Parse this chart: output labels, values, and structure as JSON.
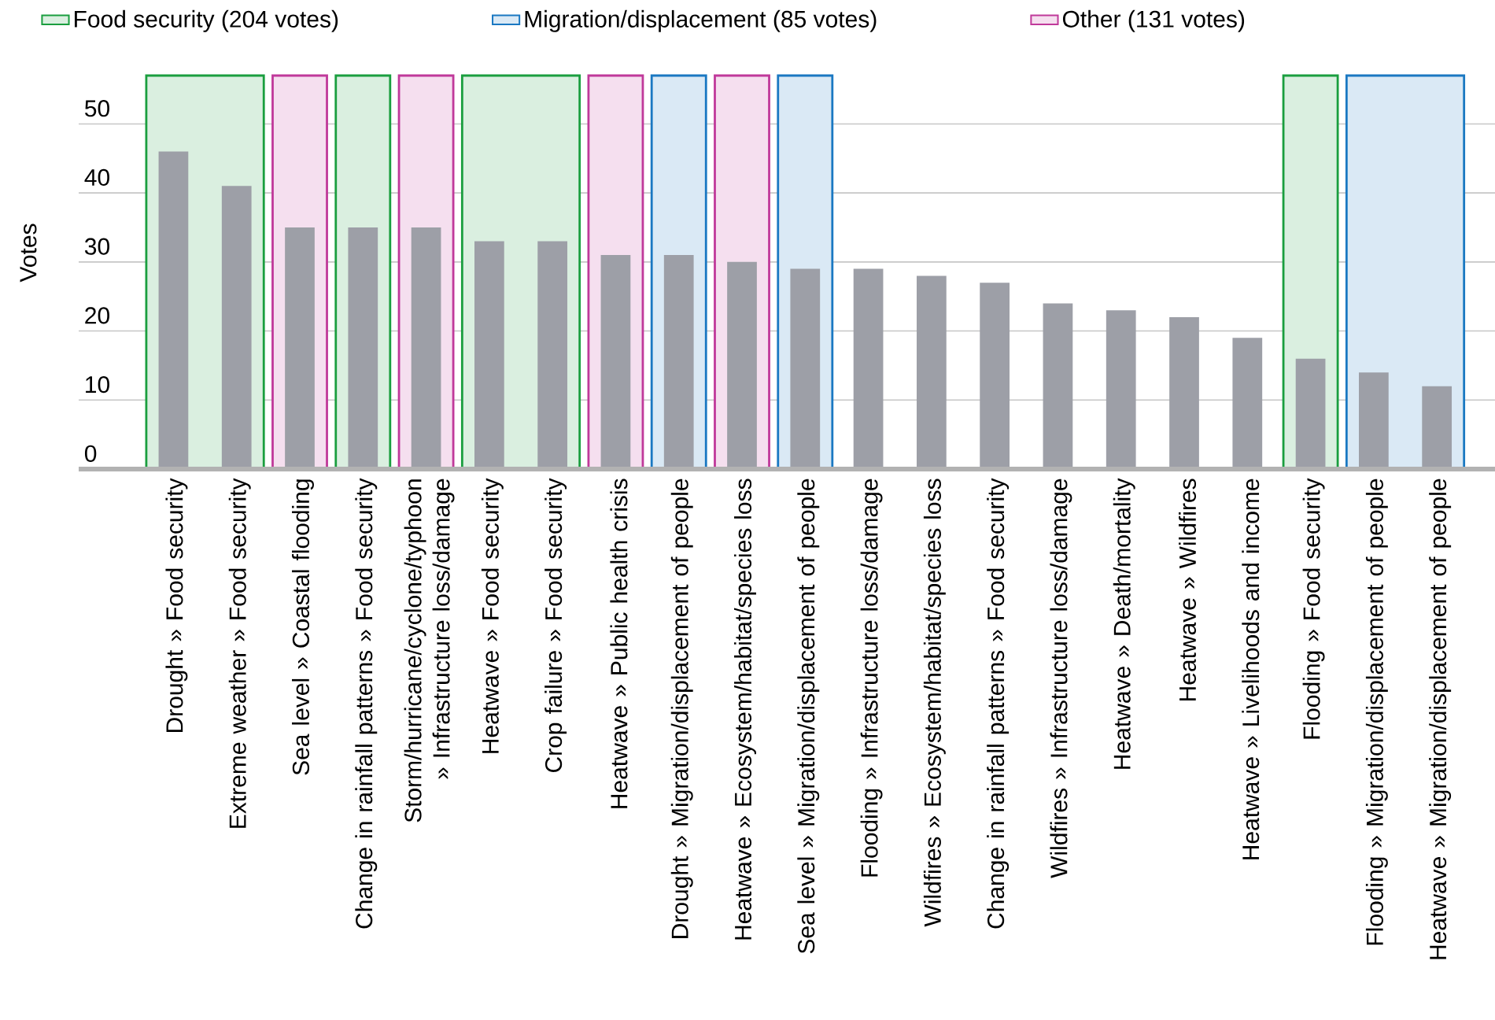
{
  "chart_data": {
    "type": "bar",
    "ylabel": "Votes",
    "categories": [
      "Drought » Food security",
      "Extreme weather » Food security",
      "Sea level » Coastal flooding",
      "Change in rainfall patterns » Food security",
      "Storm/hurricane/cyclone/typhoon » Infrastructure loss/damage",
      "Heatwave » Food security",
      "Crop failure » Food security",
      "Heatwave » Public health crisis",
      "Drought » Migration/displacement of people",
      "Heatwave » Ecosystem/habitat/species loss",
      "Sea level » Migration/displacement of people",
      "Flooding » Infrastructure loss/damage",
      "Wildfires » Ecosystem/habitat/species loss",
      "Change in rainfall patterns » Food security",
      "Wildfires » Infrastructure loss/damage",
      "Heatwave » Death/mortality",
      "Heatwave » Wildfires",
      "Heatwave » Livelihoods and income",
      "Flooding » Food security",
      "Flooding » Migration/displacement of people",
      "Heatwave » Migration/displacement of people"
    ],
    "values": [
      46,
      41,
      35,
      35,
      35,
      33,
      33,
      31,
      31,
      30,
      29,
      29,
      28,
      27,
      24,
      23,
      22,
      19,
      16,
      14,
      12
    ],
    "color": "#9d9fa7",
    "ylim": [
      0,
      57
    ],
    "yticks": [
      0,
      10,
      20,
      30,
      40,
      50
    ],
    "grid": "y",
    "legend": "top",
    "bands": [
      {
        "axis": "x",
        "from": "Drought » Food security",
        "to": "Extreme weather » Food security",
        "label": "Food security (204 votes)",
        "color": "#1a9e3f"
      },
      {
        "axis": "x",
        "from": "Sea level » Coastal flooding",
        "to": "Sea level » Coastal flooding",
        "color": "#c0399a"
      },
      {
        "axis": "x",
        "from": "Change in rainfall patterns » Food security",
        "to": "Change in rainfall patterns » Food security",
        "color": "#1a9e3f"
      },
      {
        "axis": "x",
        "from": "Storm/hurricane/cyclone/typhoon » Infrastructure loss/damage",
        "to": "Storm/hurricane/cyclone/typhoon » Infrastructure loss/damage",
        "color": "#c0399a"
      },
      {
        "axis": "x",
        "from": "Heatwave » Food security",
        "to": "Crop failure » Food security",
        "color": "#1a9e3f"
      },
      {
        "axis": "x",
        "from": "Heatwave » Public health crisis",
        "to": "Heatwave » Public health crisis",
        "color": "#c0399a"
      },
      {
        "axis": "x",
        "from": "Drought » Migration/displacement of people",
        "to": "Drought » Migration/displacement of people",
        "label": "Migration/displacement (85 votes)",
        "color": "#1a78c2"
      },
      {
        "axis": "x",
        "from": "Heatwave » Ecosystem/habitat/species loss",
        "to": "Heatwave » Ecosystem/habitat/species loss",
        "label": "Other (131 votes)",
        "color": "#c0399a"
      },
      {
        "axis": "x",
        "from": "Sea level » Migration/displacement of people",
        "to": "Sea level » Migration/displacement of people",
        "color": "#1a78c2"
      },
      {
        "axis": "x",
        "from": "Flooding » Food security",
        "to": "Flooding » Food security",
        "color": "#1a9e3f"
      },
      {
        "axis": "x",
        "from": "Flooding » Migration/displacement of people",
        "to": "Heatwave » Migration/displacement of people",
        "color": "#1a78c2"
      }
    ]
  }
}
